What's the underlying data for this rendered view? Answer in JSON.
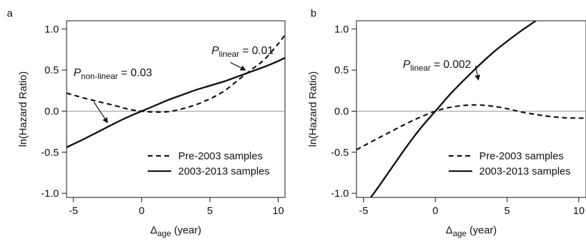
{
  "chart_data": [
    {
      "type": "line",
      "panel_label": "a",
      "xlabel": "Δ",
      "xlabel_sub": "age",
      "xlabel_suffix": " (year)",
      "ylabel": "ln(Hazard Ratio)",
      "xlim": [
        -5.5,
        10.5
      ],
      "ylim": [
        -1.05,
        1.1
      ],
      "x_ticks": [
        -5,
        0,
        5,
        10
      ],
      "y_ticks": [
        -1.0,
        -0.5,
        0.0,
        0.5,
        1.0
      ],
      "y_tick_labels": [
        "-1.0",
        "-0.5",
        "0.0",
        "0.5",
        "1.0"
      ],
      "reference_line_y": 0,
      "legend_position": "bottom-right",
      "legend": [
        {
          "name": "Pre-2003 samples",
          "style": "dashed"
        },
        {
          "name": "2003-2013 samples",
          "style": "solid"
        }
      ],
      "series": [
        {
          "name": "Pre-2003 samples",
          "style": "dashed",
          "points": [
            [
              -5.5,
              0.22
            ],
            [
              -4,
              0.15
            ],
            [
              -2,
              0.07
            ],
            [
              -1,
              0.025
            ],
            [
              0,
              0.0
            ],
            [
              1,
              -0.01
            ],
            [
              2,
              -0.005
            ],
            [
              3,
              0.03
            ],
            [
              4,
              0.08
            ],
            [
              5,
              0.15
            ],
            [
              6,
              0.24
            ],
            [
              7,
              0.37
            ],
            [
              8,
              0.5
            ],
            [
              9,
              0.63
            ],
            [
              10,
              0.82
            ],
            [
              10.5,
              0.93
            ]
          ]
        },
        {
          "name": "2003-2013 samples",
          "style": "solid",
          "points": [
            [
              -5.5,
              -0.44
            ],
            [
              -4,
              -0.32
            ],
            [
              -2,
              -0.15
            ],
            [
              -1,
              -0.07
            ],
            [
              0,
              0.0
            ],
            [
              1,
              0.07
            ],
            [
              2,
              0.14
            ],
            [
              3,
              0.2
            ],
            [
              4,
              0.26
            ],
            [
              5,
              0.31
            ],
            [
              6,
              0.36
            ],
            [
              7,
              0.42
            ],
            [
              8,
              0.48
            ],
            [
              9,
              0.54
            ],
            [
              10,
              0.61
            ],
            [
              10.5,
              0.65
            ]
          ]
        }
      ],
      "annotations": [
        {
          "prefix": "P",
          "sub": "non-linear",
          "suffix": " = 0.03",
          "arrow_from": [
            -3.5,
            0.18
          ],
          "arrow_to": [
            -2.5,
            -0.14
          ]
        },
        {
          "prefix": "P",
          "sub": "linear",
          "suffix": " = 0.01",
          "arrow_from": [
            6.5,
            0.66
          ],
          "arrow_to": [
            7.6,
            0.5
          ]
        }
      ]
    },
    {
      "type": "line",
      "panel_label": "b",
      "xlabel": "Δ",
      "xlabel_sub": "age",
      "xlabel_suffix": " (year)",
      "ylabel": "ln(Hazard Ratio)",
      "xlim": [
        -5.5,
        10.5
      ],
      "ylim": [
        -1.05,
        1.1
      ],
      "x_ticks": [
        -5,
        0,
        5,
        10
      ],
      "y_ticks": [
        -1.0,
        -0.5,
        0.0,
        0.5,
        1.0
      ],
      "y_tick_labels": [
        "-1.0",
        "-0.5",
        "0.0",
        "0.5",
        "1.0"
      ],
      "reference_line_y": 0,
      "legend_position": "bottom-right",
      "legend": [
        {
          "name": "Pre-2003 samples",
          "style": "dashed"
        },
        {
          "name": "2003-2013 samples",
          "style": "solid"
        }
      ],
      "series": [
        {
          "name": "Pre-2003 samples",
          "style": "dashed",
          "points": [
            [
              -5.5,
              -0.47
            ],
            [
              -4,
              -0.33
            ],
            [
              -2,
              -0.15
            ],
            [
              -1,
              -0.07
            ],
            [
              0,
              0.0
            ],
            [
              1,
              0.045
            ],
            [
              2,
              0.07
            ],
            [
              3,
              0.075
            ],
            [
              4,
              0.06
            ],
            [
              5,
              0.03
            ],
            [
              6,
              -0.01
            ],
            [
              7,
              -0.04
            ],
            [
              8,
              -0.065
            ],
            [
              9,
              -0.08
            ],
            [
              10,
              -0.085
            ],
            [
              10.5,
              -0.085
            ]
          ]
        },
        {
          "name": "2003-2013 samples",
          "style": "solid",
          "points": [
            [
              -4.5,
              -1.05
            ],
            [
              -4,
              -0.93
            ],
            [
              -3,
              -0.68
            ],
            [
              -2,
              -0.43
            ],
            [
              -1,
              -0.2
            ],
            [
              0,
              0.0
            ],
            [
              1,
              0.2
            ],
            [
              2,
              0.38
            ],
            [
              3,
              0.55
            ],
            [
              4,
              0.71
            ],
            [
              5,
              0.85
            ],
            [
              6,
              0.98
            ],
            [
              7,
              1.1
            ]
          ]
        }
      ],
      "annotations": [
        {
          "prefix": "P",
          "sub": "linear",
          "suffix": " = 0.002",
          "arrow_from": [
            2.8,
            0.62
          ],
          "arrow_to": [
            3.0,
            0.38
          ]
        }
      ]
    }
  ]
}
